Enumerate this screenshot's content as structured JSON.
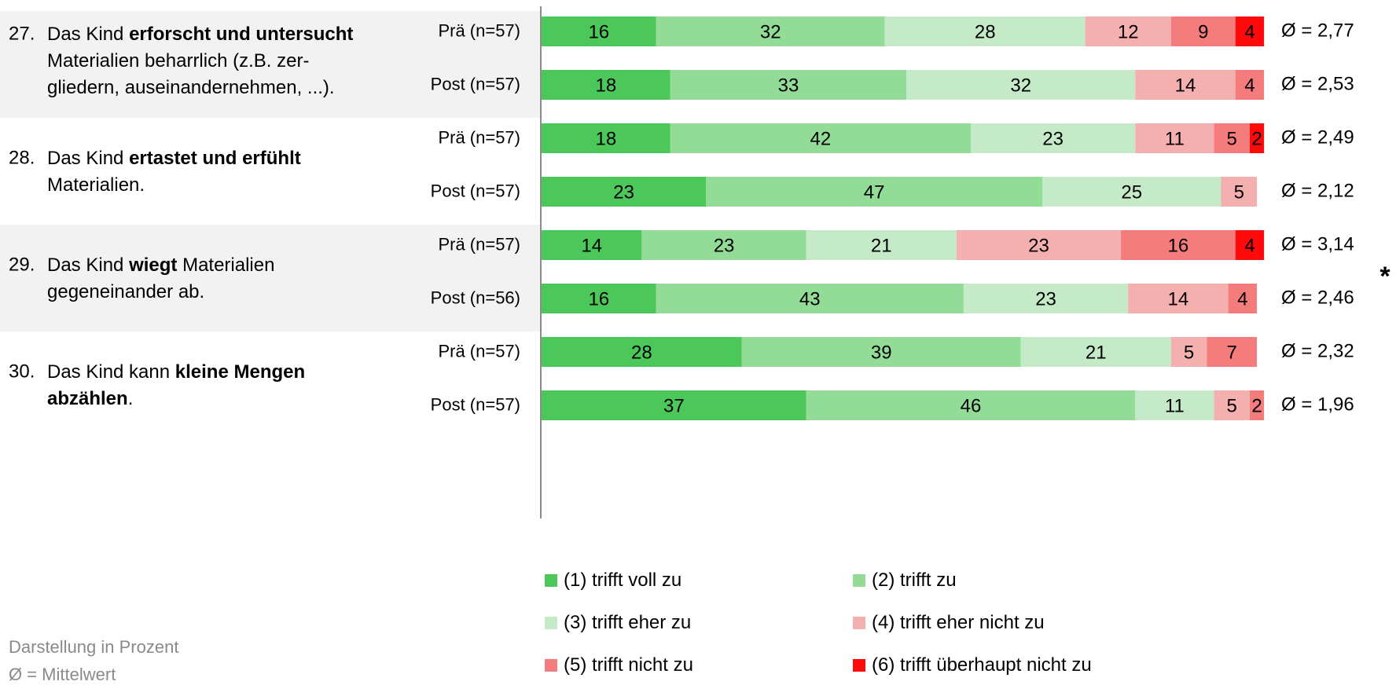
{
  "chart_data": {
    "type": "bar",
    "orientation": "horizontal",
    "stacked": true,
    "unit_note": "Darstellung in Prozent",
    "mean_note": "Ø = Mittelwert",
    "significance_marker": "*",
    "legend": [
      {
        "label": "(1) trifft voll zu",
        "color": "#4CC85A"
      },
      {
        "label": "(2) trifft zu",
        "color": "#93DC97"
      },
      {
        "label": "(3) trifft eher zu",
        "color": "#C5EAC8"
      },
      {
        "label": "(4) trifft eher nicht zu",
        "color": "#F4AFAF"
      },
      {
        "label": "(5) trifft nicht zu",
        "color": "#F47C7C"
      },
      {
        "label": "(6) trifft überhaupt nicht zu",
        "color": "#FF0A0A"
      }
    ],
    "items": [
      {
        "number": "27.",
        "text_parts": [
          {
            "t": "Das Kind ",
            "b": false
          },
          {
            "t": "erforscht und untersucht",
            "b": true
          },
          {
            "t": " Materialien beharrlich (z.B. zer-",
            "b": false
          },
          {
            "t": "gliedern, auseinandernehmen, ...).",
            "b": false
          }
        ],
        "lines": [
          [
            {
              "t": "Das Kind ",
              "b": false
            },
            {
              "t": "erforscht und untersucht",
              "b": true
            }
          ],
          [
            {
              "t": "Materialien beharrlich (z.B. zer-",
              "b": false
            }
          ],
          [
            {
              "t": "gliedern, auseinandernehmen, ...).",
              "b": false
            }
          ]
        ],
        "shaded": true,
        "significant": false,
        "rows": [
          {
            "label": "Prä (n=57)",
            "values": [
              16,
              32,
              28,
              12,
              9,
              4
            ],
            "mean": "Ø = 2,77"
          },
          {
            "label": "Post (n=57)",
            "values": [
              18,
              33,
              32,
              14,
              4
            ],
            "mean": "Ø = 2,53"
          }
        ]
      },
      {
        "number": "28.",
        "lines": [
          [
            {
              "t": "Das Kind ",
              "b": false
            },
            {
              "t": "ertastet und erfühlt",
              "b": true
            }
          ],
          [
            {
              "t": "Materialien.",
              "b": false
            }
          ]
        ],
        "shaded": false,
        "significant": false,
        "rows": [
          {
            "label": "Prä (n=57)",
            "values": [
              18,
              42,
              23,
              11,
              5,
              2
            ],
            "mean": "Ø = 2,49"
          },
          {
            "label": "Post (n=57)",
            "values": [
              23,
              47,
              25,
              5
            ],
            "mean": "Ø = 2,12"
          }
        ]
      },
      {
        "number": "29.",
        "lines": [
          [
            {
              "t": "Das Kind ",
              "b": false
            },
            {
              "t": "wiegt",
              "b": true
            },
            {
              "t": " Materialien",
              "b": false
            }
          ],
          [
            {
              "t": "gegeneinander ab.",
              "b": false
            }
          ]
        ],
        "shaded": true,
        "significant": true,
        "rows": [
          {
            "label": "Prä (n=57)",
            "values": [
              14,
              23,
              21,
              23,
              16,
              4
            ],
            "mean": "Ø = 3,14"
          },
          {
            "label": "Post (n=56)",
            "values": [
              16,
              43,
              23,
              14,
              4
            ],
            "mean": "Ø = 2,46"
          }
        ]
      },
      {
        "number": "30.",
        "lines": [
          [
            {
              "t": "Das Kind kann ",
              "b": false
            },
            {
              "t": "kleine Mengen",
              "b": true
            }
          ],
          [
            {
              "t": "abzählen",
              "b": true
            },
            {
              "t": ".",
              "b": false
            }
          ]
        ],
        "shaded": false,
        "significant": false,
        "rows": [
          {
            "label": "Prä (n=57)",
            "values": [
              28,
              39,
              21,
              5,
              7
            ],
            "mean": "Ø = 2,32"
          },
          {
            "label": "Post (n=57)",
            "values": [
              37,
              46,
              11,
              5,
              2
            ],
            "mean": "Ø = 1,96"
          }
        ]
      }
    ]
  }
}
